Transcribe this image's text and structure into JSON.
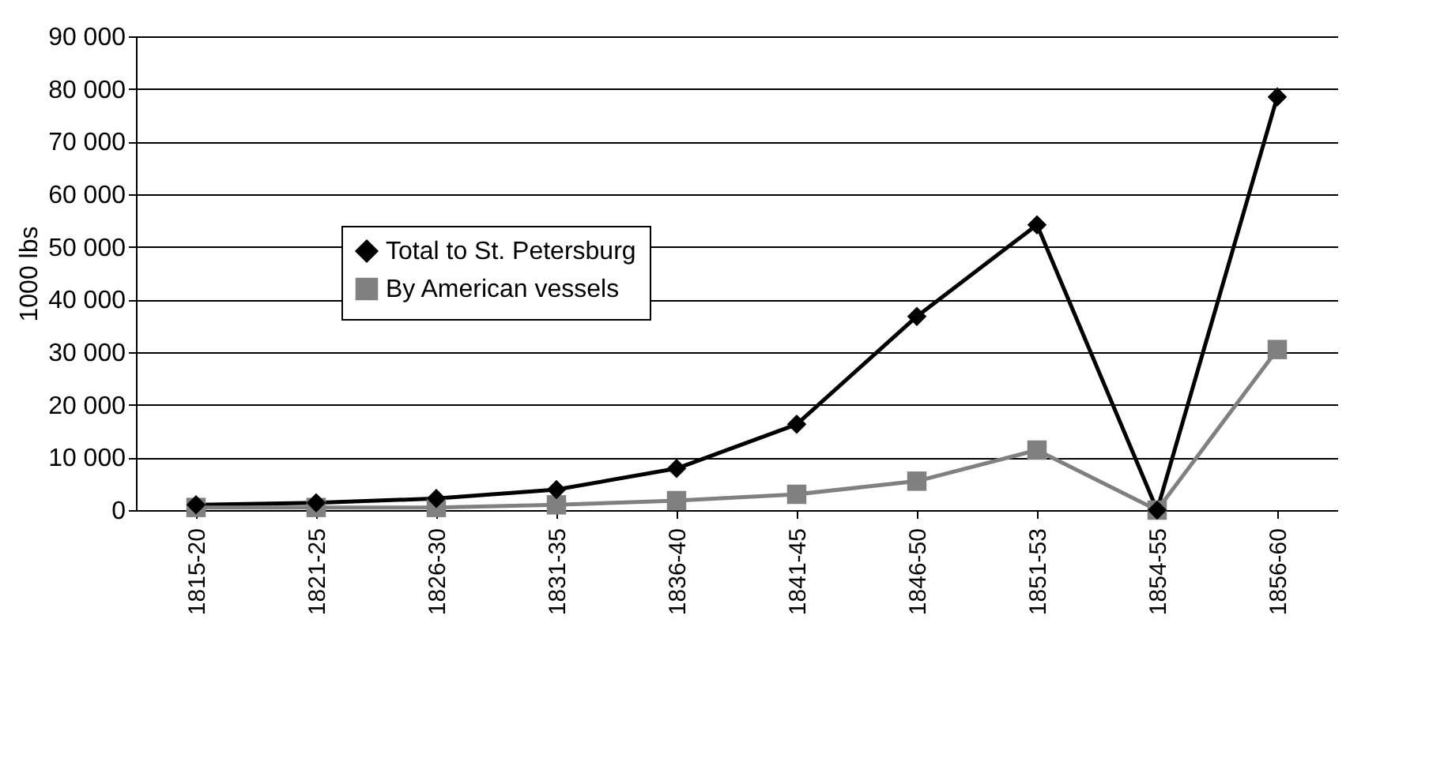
{
  "chart_data": {
    "type": "line",
    "ylabel": "1000 lbs",
    "categories": [
      "1815-20",
      "1821-25",
      "1826-30",
      "1831-35",
      "1836-40",
      "1841-45",
      "1846-50",
      "1851-53",
      "1854-55",
      "1856-60"
    ],
    "series": [
      {
        "name": "Total to St. Petersburg",
        "color": "#000000",
        "marker": "diamond",
        "values": [
          1000,
          1400,
          2200,
          3900,
          7900,
          16300,
          36800,
          54200,
          0,
          78500
        ]
      },
      {
        "name": "By American vessels",
        "color": "#808080",
        "marker": "square",
        "values": [
          500,
          500,
          500,
          1000,
          1800,
          3000,
          5500,
          11400,
          0,
          30500
        ]
      }
    ],
    "ylim": [
      0,
      90000
    ],
    "yticks": [
      0,
      10000,
      20000,
      30000,
      40000,
      50000,
      60000,
      70000,
      80000,
      90000
    ],
    "grid": "y",
    "legend": "left",
    "line_style": "solid"
  }
}
